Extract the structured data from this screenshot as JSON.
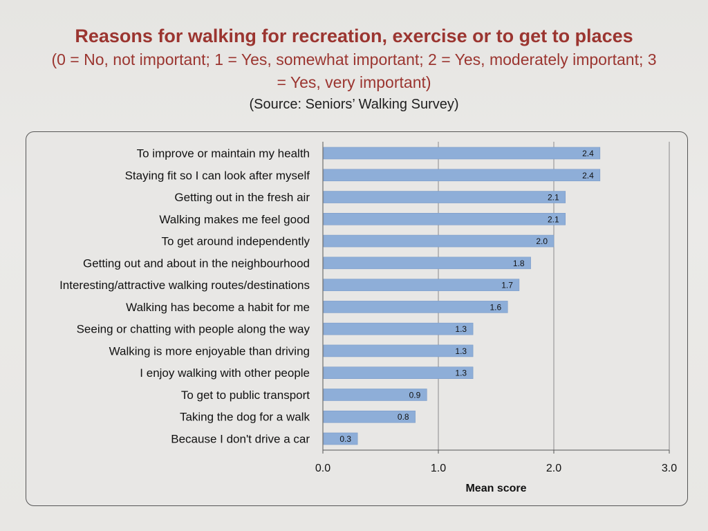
{
  "slide": {
    "title": "Reasons for walking for recreation, exercise or to get to places",
    "subtitle": "(0 = No, not important; 1 = Yes, somewhat important; 2 = Yes, moderately important; 3 = Yes, very important)",
    "source": "(Source: Seniors’ Walking Survey)"
  },
  "colors": {
    "title": "#9b3530",
    "bar": "#8eaed8",
    "bar_edge": "#7a9bc9",
    "grid": "#8a8a8a"
  },
  "chart_data": {
    "type": "bar",
    "orientation": "horizontal",
    "categories": [
      "To improve or maintain my health",
      "Staying fit so I can look after myself",
      "Getting out in the fresh air",
      "Walking makes me feel good",
      "To get around independently",
      "Getting out and about in the neighbourhood",
      "Interesting/attractive walking routes/destinations",
      "Walking has become a habit for me",
      "Seeing or chatting with people along the way",
      "Walking is more enjoyable than driving",
      "I enjoy walking with other people",
      "To get to public transport",
      "Taking the dog for a walk",
      "Because I don't drive a car"
    ],
    "values": [
      2.4,
      2.4,
      2.1,
      2.1,
      2.0,
      1.8,
      1.7,
      1.6,
      1.3,
      1.3,
      1.3,
      0.9,
      0.8,
      0.3
    ],
    "value_labels": [
      "2.4",
      "2.4",
      "2.1",
      "2.1",
      "2.0",
      "1.8",
      "1.7",
      "1.6",
      "1.3",
      "1.3",
      "1.3",
      "0.9",
      "0.8",
      "0.3"
    ],
    "xlim": [
      0,
      3
    ],
    "xticks": [
      0,
      1,
      2,
      3
    ],
    "xtick_labels": [
      "0.0",
      "1.0",
      "2.0",
      "3.0"
    ],
    "xlabel": "Mean score",
    "ylabel": "",
    "grid": true,
    "legend": "none"
  }
}
